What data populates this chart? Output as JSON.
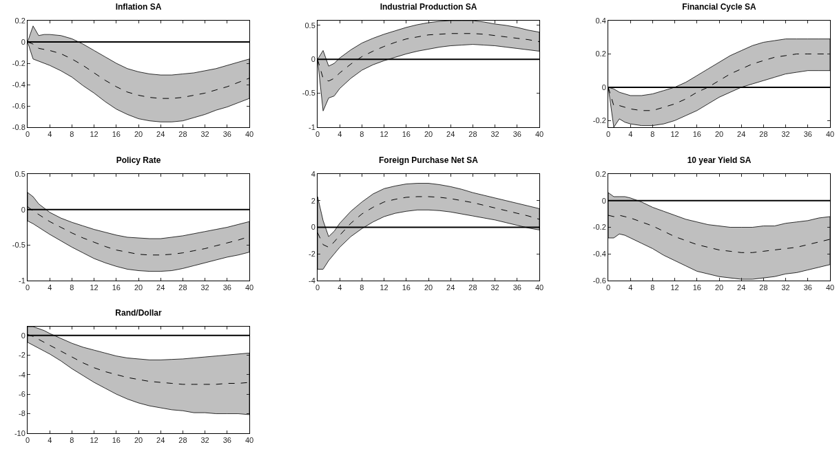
{
  "chart_data": [
    {
      "type": "line",
      "title": "Inflation SA",
      "x": [
        0,
        1,
        2,
        3,
        4,
        6,
        8,
        10,
        12,
        14,
        16,
        18,
        20,
        22,
        24,
        26,
        28,
        30,
        32,
        34,
        36,
        38,
        40
      ],
      "xlim": [
        0,
        40
      ],
      "xticks": [
        0,
        4,
        8,
        12,
        16,
        20,
        24,
        28,
        32,
        36,
        40
      ],
      "ylim": [
        -0.8,
        0.2
      ],
      "yticks": [
        -0.8,
        -0.6,
        -0.4,
        -0.2,
        0,
        0.2
      ],
      "line_style": "dashed",
      "marker": "none",
      "series": [
        {
          "color": "#000000",
          "values": [
            0,
            -0.02,
            -0.06,
            -0.07,
            -0.08,
            -0.11,
            -0.16,
            -0.22,
            -0.29,
            -0.36,
            -0.42,
            -0.47,
            -0.5,
            -0.52,
            -0.53,
            -0.53,
            -0.52,
            -0.5,
            -0.48,
            -0.45,
            -0.42,
            -0.38,
            -0.34
          ],
          "lower": [
            0,
            -0.16,
            -0.18,
            -0.2,
            -0.22,
            -0.27,
            -0.33,
            -0.41,
            -0.48,
            -0.56,
            -0.63,
            -0.68,
            -0.72,
            -0.74,
            -0.75,
            -0.75,
            -0.74,
            -0.71,
            -0.68,
            -0.64,
            -0.61,
            -0.57,
            -0.53
          ],
          "upper": [
            0,
            0.15,
            0.06,
            0.07,
            0.07,
            0.06,
            0.03,
            -0.02,
            -0.08,
            -0.14,
            -0.2,
            -0.25,
            -0.28,
            -0.3,
            -0.31,
            -0.31,
            -0.3,
            -0.29,
            -0.27,
            -0.25,
            -0.22,
            -0.19,
            -0.16
          ]
        }
      ],
      "ref_lines": [
        {
          "axis": "y",
          "value": 0,
          "color": "#000000"
        }
      ]
    },
    {
      "type": "line",
      "title": "Industrial Production SA",
      "x": [
        0,
        1,
        2,
        3,
        4,
        6,
        8,
        10,
        12,
        14,
        16,
        18,
        20,
        22,
        24,
        26,
        28,
        30,
        32,
        34,
        36,
        38,
        40
      ],
      "xlim": [
        0,
        40
      ],
      "xticks": [
        0,
        4,
        8,
        12,
        16,
        20,
        24,
        28,
        32,
        36,
        40
      ],
      "ylim": [
        -1,
        0.57
      ],
      "yticks": [
        -1,
        -0.5,
        0,
        0.5
      ],
      "line_style": "dashed",
      "marker": "none",
      "series": [
        {
          "color": "#000000",
          "values": [
            0,
            -0.28,
            -0.32,
            -0.28,
            -0.2,
            -0.07,
            0.04,
            0.12,
            0.19,
            0.25,
            0.3,
            0.33,
            0.36,
            0.37,
            0.38,
            0.38,
            0.38,
            0.37,
            0.35,
            0.33,
            0.31,
            0.29,
            0.26
          ],
          "lower": [
            0,
            -0.76,
            -0.57,
            -0.54,
            -0.43,
            -0.28,
            -0.16,
            -0.08,
            -0.02,
            0.03,
            0.08,
            0.12,
            0.15,
            0.18,
            0.2,
            0.21,
            0.22,
            0.21,
            0.2,
            0.18,
            0.16,
            0.14,
            0.12
          ],
          "upper": [
            0,
            0.13,
            -0.1,
            -0.06,
            0.02,
            0.14,
            0.24,
            0.31,
            0.37,
            0.42,
            0.47,
            0.51,
            0.54,
            0.56,
            0.57,
            0.57,
            0.57,
            0.55,
            0.52,
            0.5,
            0.47,
            0.43,
            0.4
          ]
        }
      ],
      "ref_lines": [
        {
          "axis": "y",
          "value": 0,
          "color": "#000000"
        }
      ]
    },
    {
      "type": "line",
      "title": "Financial Cycle SA",
      "x": [
        0,
        1,
        2,
        3,
        4,
        6,
        8,
        10,
        12,
        14,
        16,
        18,
        20,
        22,
        24,
        26,
        28,
        30,
        32,
        34,
        36,
        38,
        40
      ],
      "xlim": [
        0,
        40
      ],
      "xticks": [
        0,
        4,
        8,
        12,
        16,
        20,
        24,
        28,
        32,
        36,
        40
      ],
      "ylim": [
        -0.24,
        0.4
      ],
      "yticks": [
        -0.2,
        0,
        0.2,
        0.4
      ],
      "line_style": "dashed",
      "marker": "none",
      "series": [
        {
          "color": "#000000",
          "values": [
            0,
            -0.11,
            -0.11,
            -0.12,
            -0.13,
            -0.14,
            -0.14,
            -0.12,
            -0.1,
            -0.07,
            -0.03,
            0,
            0.04,
            0.08,
            0.11,
            0.14,
            0.16,
            0.18,
            0.19,
            0.2,
            0.2,
            0.2,
            0.2
          ],
          "lower": [
            0,
            -0.24,
            -0.19,
            -0.21,
            -0.22,
            -0.23,
            -0.23,
            -0.22,
            -0.2,
            -0.17,
            -0.14,
            -0.1,
            -0.06,
            -0.03,
            0,
            0.02,
            0.04,
            0.06,
            0.08,
            0.09,
            0.1,
            0.1,
            0.1
          ],
          "upper": [
            0,
            -0.01,
            -0.03,
            -0.04,
            -0.05,
            -0.05,
            -0.04,
            -0.02,
            0,
            0.03,
            0.07,
            0.11,
            0.15,
            0.19,
            0.22,
            0.25,
            0.27,
            0.28,
            0.29,
            0.29,
            0.29,
            0.29,
            0.29
          ]
        }
      ],
      "ref_lines": [
        {
          "axis": "y",
          "value": 0,
          "color": "#000000"
        }
      ]
    },
    {
      "type": "line",
      "title": "Policy Rate",
      "x": [
        0,
        1,
        2,
        3,
        4,
        6,
        8,
        10,
        12,
        14,
        16,
        18,
        20,
        22,
        24,
        26,
        28,
        30,
        32,
        34,
        36,
        38,
        40
      ],
      "xlim": [
        0,
        40
      ],
      "xticks": [
        0,
        4,
        8,
        12,
        16,
        20,
        24,
        28,
        32,
        36,
        40
      ],
      "ylim": [
        -1,
        0.5
      ],
      "yticks": [
        -1,
        -0.5,
        0,
        0.5
      ],
      "line_style": "dashed",
      "marker": "none",
      "series": [
        {
          "color": "#000000",
          "values": [
            0.04,
            -0.02,
            -0.07,
            -0.12,
            -0.17,
            -0.25,
            -0.33,
            -0.4,
            -0.46,
            -0.52,
            -0.57,
            -0.6,
            -0.63,
            -0.64,
            -0.64,
            -0.63,
            -0.61,
            -0.58,
            -0.55,
            -0.51,
            -0.47,
            -0.43,
            -0.38
          ],
          "lower": [
            -0.16,
            -0.2,
            -0.25,
            -0.3,
            -0.35,
            -0.44,
            -0.53,
            -0.61,
            -0.69,
            -0.75,
            -0.8,
            -0.84,
            -0.86,
            -0.87,
            -0.87,
            -0.86,
            -0.83,
            -0.79,
            -0.75,
            -0.71,
            -0.67,
            -0.64,
            -0.6
          ],
          "upper": [
            0.24,
            0.18,
            0.08,
            0.02,
            -0.04,
            -0.12,
            -0.18,
            -0.23,
            -0.28,
            -0.32,
            -0.36,
            -0.39,
            -0.4,
            -0.41,
            -0.41,
            -0.39,
            -0.37,
            -0.34,
            -0.31,
            -0.28,
            -0.25,
            -0.21,
            -0.17
          ]
        }
      ],
      "ref_lines": [
        {
          "axis": "y",
          "value": 0,
          "color": "#000000"
        }
      ]
    },
    {
      "type": "line",
      "title": "Foreign Purchase Net SA",
      "x": [
        0,
        1,
        2,
        3,
        4,
        6,
        8,
        10,
        12,
        14,
        16,
        18,
        20,
        22,
        24,
        26,
        28,
        30,
        32,
        34,
        36,
        38,
        40
      ],
      "xlim": [
        0,
        40
      ],
      "xticks": [
        0,
        4,
        8,
        12,
        16,
        20,
        24,
        28,
        32,
        36,
        40
      ],
      "ylim": [
        -4,
        4
      ],
      "yticks": [
        -4,
        -2,
        0,
        2,
        4
      ],
      "line_style": "dashed",
      "marker": "none",
      "series": [
        {
          "color": "#000000",
          "values": [
            -0.4,
            -1.3,
            -1.5,
            -1.1,
            -0.6,
            0.3,
            1,
            1.5,
            1.9,
            2.1,
            2.25,
            2.3,
            2.3,
            2.25,
            2.15,
            2,
            1.85,
            1.65,
            1.45,
            1.25,
            1.05,
            0.85,
            0.6
          ],
          "lower": [
            -3.15,
            -3.15,
            -2.5,
            -2,
            -1.5,
            -0.7,
            -0.1,
            0.4,
            0.8,
            1.05,
            1.2,
            1.3,
            1.3,
            1.25,
            1.15,
            1,
            0.85,
            0.7,
            0.55,
            0.35,
            0.15,
            -0.05,
            -0.2
          ],
          "upper": [
            2.3,
            0.5,
            -0.7,
            -0.3,
            0.3,
            1.2,
            1.9,
            2.5,
            2.9,
            3.1,
            3.25,
            3.3,
            3.3,
            3.2,
            3.05,
            2.85,
            2.6,
            2.4,
            2.2,
            2,
            1.8,
            1.6,
            1.4
          ]
        }
      ],
      "ref_lines": [
        {
          "axis": "y",
          "value": 0,
          "color": "#000000"
        }
      ]
    },
    {
      "type": "line",
      "title": "10 year Yield SA",
      "x": [
        0,
        1,
        2,
        3,
        4,
        6,
        8,
        10,
        12,
        14,
        16,
        18,
        20,
        22,
        24,
        26,
        28,
        30,
        32,
        34,
        36,
        38,
        40
      ],
      "xlim": [
        0,
        40
      ],
      "xticks": [
        0,
        4,
        8,
        12,
        16,
        20,
        24,
        28,
        32,
        36,
        40
      ],
      "ylim": [
        -0.6,
        0.2
      ],
      "yticks": [
        -0.6,
        -0.4,
        -0.2,
        0,
        0.2
      ],
      "line_style": "dashed",
      "marker": "none",
      "series": [
        {
          "color": "#000000",
          "values": [
            -0.11,
            -0.12,
            -0.11,
            -0.12,
            -0.13,
            -0.16,
            -0.19,
            -0.23,
            -0.27,
            -0.3,
            -0.33,
            -0.35,
            -0.37,
            -0.38,
            -0.39,
            -0.39,
            -0.38,
            -0.37,
            -0.36,
            -0.35,
            -0.33,
            -0.31,
            -0.29
          ],
          "lower": [
            -0.28,
            -0.28,
            -0.25,
            -0.26,
            -0.28,
            -0.32,
            -0.36,
            -0.41,
            -0.45,
            -0.49,
            -0.53,
            -0.55,
            -0.57,
            -0.58,
            -0.59,
            -0.59,
            -0.58,
            -0.57,
            -0.55,
            -0.54,
            -0.52,
            -0.5,
            -0.48
          ],
          "upper": [
            0.06,
            0.03,
            0.03,
            0.03,
            0.02,
            -0.01,
            -0.05,
            -0.08,
            -0.11,
            -0.14,
            -0.16,
            -0.18,
            -0.19,
            -0.2,
            -0.2,
            -0.2,
            -0.19,
            -0.19,
            -0.17,
            -0.16,
            -0.15,
            -0.13,
            -0.12
          ]
        }
      ],
      "ref_lines": [
        {
          "axis": "y",
          "value": 0,
          "color": "#000000"
        }
      ]
    },
    {
      "type": "line",
      "title": "Rand/Dollar",
      "x": [
        0,
        1,
        2,
        3,
        4,
        6,
        8,
        10,
        12,
        14,
        16,
        18,
        20,
        22,
        24,
        26,
        28,
        30,
        32,
        34,
        36,
        38,
        40
      ],
      "xlim": [
        0,
        40
      ],
      "xticks": [
        0,
        4,
        8,
        12,
        16,
        20,
        24,
        28,
        32,
        36,
        40
      ],
      "ylim": [
        -10,
        0.9
      ],
      "yticks": [
        -10,
        -8,
        -6,
        -4,
        -2,
        0
      ],
      "line_style": "dashed",
      "marker": "none",
      "series": [
        {
          "color": "#000000",
          "values": [
            0.1,
            -0.1,
            -0.4,
            -0.7,
            -1,
            -1.6,
            -2.2,
            -2.8,
            -3.3,
            -3.7,
            -4,
            -4.3,
            -4.5,
            -4.7,
            -4.8,
            -4.9,
            -5,
            -5,
            -5,
            -5,
            -4.9,
            -4.9,
            -4.8
          ],
          "lower": [
            -0.7,
            -1,
            -1.3,
            -1.6,
            -1.9,
            -2.6,
            -3.4,
            -4.1,
            -4.8,
            -5.4,
            -6,
            -6.5,
            -6.9,
            -7.2,
            -7.4,
            -7.6,
            -7.7,
            -7.9,
            -7.9,
            -8,
            -8,
            -8,
            -8.1
          ],
          "upper": [
            0.9,
            0.9,
            0.7,
            0.5,
            0.2,
            -0.3,
            -0.8,
            -1.2,
            -1.5,
            -1.8,
            -2.1,
            -2.3,
            -2.4,
            -2.5,
            -2.5,
            -2.45,
            -2.4,
            -2.3,
            -2.2,
            -2.1,
            -2,
            -1.9,
            -1.8
          ]
        }
      ],
      "ref_lines": [
        {
          "axis": "y",
          "value": 0,
          "color": "#000000"
        }
      ]
    }
  ]
}
